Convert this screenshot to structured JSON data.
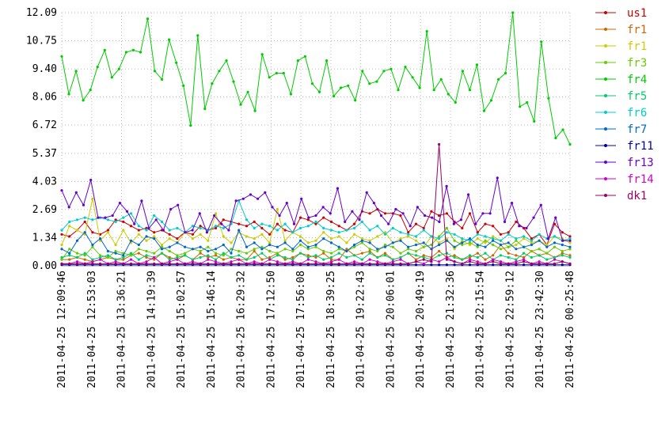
{
  "chart_data": {
    "type": "line",
    "ylim": [
      0,
      12.09
    ],
    "y_ticks": [
      "0.00",
      "1.34",
      "2.69",
      "4.03",
      "5.37",
      "6.72",
      "8.06",
      "9.40",
      "10.75",
      "12.09"
    ],
    "x_ticks": [
      "2011-04-25 12:09:46",
      "2011-04-25 12:53:03",
      "2011-04-25 13:36:21",
      "2011-04-25 14:19:39",
      "2011-04-25 15:02:57",
      "2011-04-25 15:46:14",
      "2011-04-25 16:29:32",
      "2011-04-25 17:12:50",
      "2011-04-25 17:56:08",
      "2011-04-25 18:39:25",
      "2011-04-25 19:22:43",
      "2011-04-25 20:06:01",
      "2011-04-25 20:49:19",
      "2011-04-25 21:32:36",
      "2011-04-25 22:15:54",
      "2011-04-25 22:59:12",
      "2011-04-25 23:42:30",
      "2011-04-26 00:25:48"
    ],
    "grid": true,
    "legend_position": "right",
    "series": [
      {
        "name": "us1",
        "color": "#cc0000",
        "values": [
          1.5,
          1.4,
          1.7,
          2.1,
          1.6,
          1.5,
          1.7,
          2.2,
          2.1,
          1.9,
          1.7,
          1.8,
          1.6,
          1.7,
          1.5,
          1.3,
          1.6,
          1.5,
          1.9,
          1.7,
          1.8,
          2.2,
          2.1,
          2.0,
          1.9,
          2.1,
          1.8,
          1.5,
          2.0,
          1.7,
          1.6,
          2.3,
          2.2,
          2.0,
          2.3,
          2.1,
          1.9,
          1.7,
          2.0,
          2.6,
          2.5,
          2.7,
          2.5,
          2.5,
          2.4,
          1.6,
          2.0,
          1.8,
          2.6,
          2.4,
          2.5,
          2.1,
          1.8,
          2.5,
          1.6,
          2.0,
          1.9,
          1.5,
          1.6,
          2.1,
          1.8,
          1.3,
          1.5,
          1.0,
          2.0,
          1.6,
          1.4
        ]
      },
      {
        "name": "fr1",
        "color": "#cc6600",
        "values": [
          0.3,
          0.3,
          0.4,
          0.3,
          0.2,
          0.3,
          0.4,
          0.3,
          0.3,
          0.5,
          0.6,
          0.4,
          0.3,
          0.6,
          0.4,
          0.3,
          0.5,
          0.3,
          0.6,
          0.4,
          0.5,
          0.3,
          0.4,
          0.3,
          0.3,
          0.7,
          0.3,
          0.4,
          0.6,
          0.3,
          0.4,
          0.6,
          0.5,
          0.4,
          0.6,
          0.3,
          0.3,
          0.8,
          0.5,
          0.6,
          0.7,
          0.4,
          0.6,
          0.3,
          0.4,
          0.6,
          0.3,
          0.5,
          0.4,
          0.7,
          0.4,
          0.5,
          0.3,
          0.4,
          0.6,
          0.3,
          0.5,
          1.0,
          0.6,
          0.5,
          0.4,
          0.7,
          0.5,
          0.6,
          0.4,
          0.6,
          0.5
        ]
      },
      {
        "name": "fr1",
        "color": "#cccc00",
        "values": [
          1.0,
          1.9,
          1.7,
          1.5,
          3.2,
          1.2,
          1.6,
          1.0,
          1.7,
          1.1,
          1.5,
          1.2,
          1.4,
          1.0,
          1.3,
          1.1,
          1.6,
          1.3,
          1.5,
          1.2,
          2.5,
          1.4,
          1.1,
          1.6,
          1.4,
          1.3,
          1.5,
          1.1,
          2.7,
          1.2,
          1.6,
          1.4,
          1.1,
          1.2,
          1.6,
          1.3,
          1.4,
          1.1,
          1.5,
          1.3,
          1.2,
          1.4,
          1.6,
          1.1,
          1.3,
          1.4,
          1.2,
          0.9,
          1.4,
          1.1,
          1.3,
          0.8,
          1.2,
          1.0,
          1.3,
          1.1,
          1.4,
          1.2,
          0.9,
          1.0,
          1.3,
          1.1,
          1.2,
          1.0,
          1.4,
          1.3,
          1.1
        ]
      },
      {
        "name": "fr3",
        "color": "#66cc00",
        "values": [
          0.3,
          0.8,
          0.6,
          0.5,
          0.9,
          0.5,
          0.4,
          0.7,
          0.6,
          0.5,
          0.8,
          0.7,
          0.6,
          0.9,
          0.7,
          0.5,
          0.6,
          0.8,
          0.7,
          0.9,
          0.6,
          0.5,
          0.8,
          0.7,
          0.6,
          0.8,
          0.9,
          0.7,
          0.6,
          0.8,
          0.7,
          1.0,
          0.8,
          0.9,
          0.7,
          0.6,
          0.8,
          0.7,
          0.9,
          1.1,
          0.8,
          0.7,
          1.0,
          0.9,
          0.6,
          0.8,
          0.7,
          0.9,
          1.0,
          1.4,
          1.8,
          1.2,
          1.0,
          1.1,
          0.9,
          1.2,
          1.0,
          0.8,
          0.9,
          1.2,
          0.9,
          0.7,
          0.8,
          0.6,
          0.9,
          0.7,
          0.8
        ]
      },
      {
        "name": "fr4",
        "color": "#00cc00",
        "values": [
          10.0,
          8.2,
          9.3,
          7.9,
          8.4,
          9.5,
          10.3,
          9.0,
          9.4,
          10.2,
          10.3,
          10.2,
          11.8,
          9.3,
          8.9,
          10.8,
          9.7,
          8.6,
          6.7,
          11.0,
          7.5,
          8.7,
          9.3,
          9.8,
          8.8,
          7.7,
          8.3,
          7.4,
          10.1,
          9.0,
          9.2,
          9.2,
          8.2,
          9.8,
          10.0,
          8.7,
          8.3,
          9.8,
          8.1,
          8.5,
          8.6,
          7.9,
          9.3,
          8.7,
          8.8,
          9.3,
          9.4,
          8.4,
          9.5,
          9.0,
          8.5,
          11.2,
          8.4,
          8.9,
          8.2,
          7.8,
          9.3,
          8.4,
          9.6,
          7.4,
          7.9,
          8.9,
          9.2,
          12.09,
          7.6,
          7.8,
          6.9,
          10.7,
          8.0,
          6.1,
          6.5,
          5.8
        ]
      },
      {
        "name": "fr5",
        "color": "#00cc66",
        "values": [
          0.4,
          0.5,
          0.4,
          0.6,
          0.3,
          0.4,
          0.5,
          0.3,
          0.4,
          0.6,
          0.3,
          0.5,
          0.4,
          0.6,
          0.3,
          0.4,
          0.5,
          0.3,
          0.4,
          0.5,
          0.3,
          0.6,
          0.4,
          0.5,
          0.3,
          0.4,
          0.6,
          0.3,
          0.5,
          0.4,
          0.3,
          0.6,
          0.4,
          0.5,
          0.3,
          0.4,
          0.6,
          0.4,
          0.5,
          0.3,
          0.6,
          0.4,
          0.5,
          0.3,
          0.4,
          0.6,
          0.5,
          0.4,
          0.3,
          0.5,
          0.6,
          0.4,
          0.3,
          0.5,
          0.4,
          0.6,
          0.3,
          0.5,
          0.4,
          0.3,
          0.6,
          0.4,
          0.5,
          0.3,
          0.4,
          0.5,
          0.4
        ]
      },
      {
        "name": "fr6",
        "color": "#00cccc",
        "values": [
          1.7,
          2.1,
          2.2,
          2.3,
          2.2,
          2.3,
          2.2,
          2.1,
          2.3,
          2.5,
          1.9,
          1.7,
          2.4,
          2.1,
          1.7,
          1.8,
          1.6,
          1.9,
          1.8,
          1.7,
          1.9,
          1.8,
          2.0,
          3.1,
          2.2,
          1.8,
          2.0,
          1.9,
          1.7,
          2.0,
          1.6,
          1.8,
          1.9,
          2.1,
          1.8,
          1.7,
          1.6,
          1.7,
          1.8,
          2.1,
          1.7,
          1.9,
          1.5,
          1.8,
          1.6,
          1.5,
          1.4,
          1.7,
          1.4,
          1.3,
          1.6,
          1.5,
          1.3,
          1.2,
          1.5,
          1.4,
          1.3,
          1.2,
          1.5,
          1.3,
          1.4,
          1.2,
          1.5,
          1.3,
          1.4,
          1.2,
          1.3
        ]
      },
      {
        "name": "fr7",
        "color": "#0066cc",
        "values": [
          0.8,
          0.6,
          1.2,
          1.6,
          1.0,
          1.3,
          0.7,
          0.6,
          0.5,
          1.2,
          1.0,
          1.4,
          1.3,
          0.8,
          0.9,
          1.1,
          0.9,
          0.8,
          0.9,
          0.7,
          0.8,
          1.0,
          0.6,
          1.7,
          0.9,
          1.1,
          0.8,
          1.0,
          0.9,
          1.1,
          0.8,
          1.2,
          0.9,
          1.0,
          1.3,
          1.1,
          0.9,
          0.7,
          1.0,
          1.2,
          1.1,
          0.8,
          0.9,
          1.1,
          1.2,
          0.9,
          1.0,
          1.1,
          0.8,
          1.0,
          1.2,
          0.9,
          1.1,
          1.3,
          1.0,
          0.9,
          1.2,
          1.0,
          1.1,
          0.8,
          0.9,
          1.0,
          1.2,
          0.9,
          1.1,
          1.0,
          0.9
        ]
      },
      {
        "name": "fr11",
        "color": "#0000aa",
        "values": [
          0.05,
          0.05,
          0.05,
          0.05,
          0.05,
          0.05,
          0.05,
          0.05,
          0.05,
          0.05,
          0.05,
          0.05,
          0.05,
          0.05,
          0.05,
          0.05,
          0.05,
          0.05,
          0.05,
          0.05,
          0.05,
          0.05,
          0.05,
          0.05,
          0.05,
          0.05,
          0.05,
          0.05,
          0.05,
          0.05,
          0.05,
          0.05,
          0.05,
          0.05,
          0.05,
          0.05,
          0.05,
          0.05,
          0.05,
          0.05,
          0.05,
          0.05,
          0.05,
          0.05,
          0.05,
          0.05,
          0.05,
          0.05,
          0.05,
          0.05,
          0.05,
          0.05,
          0.05,
          0.05,
          0.05,
          0.05,
          0.05,
          0.05,
          0.05,
          0.05,
          0.05,
          0.05,
          0.05,
          0.05,
          0.05,
          0.05,
          0.05
        ]
      },
      {
        "name": "fr13",
        "color": "#6600cc",
        "values": [
          3.6,
          2.8,
          3.5,
          2.9,
          4.1,
          2.3,
          2.3,
          2.4,
          3.0,
          2.6,
          2.0,
          3.1,
          1.8,
          2.2,
          1.7,
          2.7,
          2.9,
          1.6,
          1.7,
          2.5,
          1.6,
          2.4,
          2.0,
          1.7,
          3.1,
          3.2,
          3.4,
          3.2,
          3.5,
          2.8,
          2.4,
          3.0,
          2.0,
          3.2,
          2.3,
          2.4,
          2.8,
          2.5,
          3.7,
          2.1,
          2.6,
          2.2,
          3.5,
          3.0,
          2.4,
          2.0,
          2.7,
          2.5,
          1.9,
          2.8,
          2.4,
          2.3,
          2.1,
          3.8,
          2.0,
          2.2,
          3.4,
          2.0,
          2.5,
          2.5,
          4.2,
          2.1,
          3.0,
          1.9,
          1.8,
          2.3,
          2.9,
          1.3,
          2.3,
          1.2,
          1.2
        ]
      },
      {
        "name": "fr14",
        "color": "#cc00cc",
        "values": [
          0.1,
          0.1,
          0.2,
          0.1,
          0.2,
          0.3,
          0.1,
          0.2,
          0.1,
          0.3,
          0.1,
          0.2,
          0.4,
          0.1,
          0.2,
          0.3,
          0.1,
          0.2,
          0.1,
          0.3,
          0.2,
          0.1,
          0.2,
          0.3,
          0.1,
          0.2,
          0.1,
          0.3,
          0.2,
          0.1,
          0.2,
          0.1,
          0.3,
          0.2,
          0.1,
          0.2,
          0.3,
          0.1,
          0.2,
          0.1,
          0.3,
          0.2,
          0.1,
          0.2,
          0.3,
          0.1,
          0.2,
          0.1,
          0.3,
          0.2,
          0.4,
          0.2,
          0.1,
          0.3,
          0.2,
          0.1,
          0.3,
          0.2,
          0.1,
          0.2,
          0.3,
          0.1,
          0.2,
          0.1,
          0.3,
          0.2,
          0.1
        ]
      },
      {
        "name": "dk1",
        "color": "#990066",
        "values": [
          0.1,
          0.1,
          0.1,
          0.1,
          0.1,
          0.1,
          0.1,
          0.1,
          0.1,
          0.1,
          0.1,
          0.1,
          0.1,
          0.1,
          0.1,
          0.1,
          0.1,
          0.1,
          0.1,
          0.1,
          0.1,
          0.1,
          0.1,
          0.1,
          0.1,
          0.1,
          0.1,
          0.1,
          0.1,
          0.1,
          0.1,
          0.1,
          0.1,
          0.1,
          0.1,
          0.1,
          0.1,
          0.1,
          0.1,
          0.1,
          0.1,
          0.1,
          0.1,
          0.1,
          0.1,
          0.1,
          0.2,
          0.3,
          0.2,
          5.8,
          0.3,
          0.2,
          0.1,
          0.2,
          0.1,
          0.1,
          0.2,
          0.1,
          0.1,
          0.1,
          0.2,
          0.1,
          0.1,
          0.1,
          0.1,
          0.2,
          0.1
        ]
      }
    ]
  }
}
